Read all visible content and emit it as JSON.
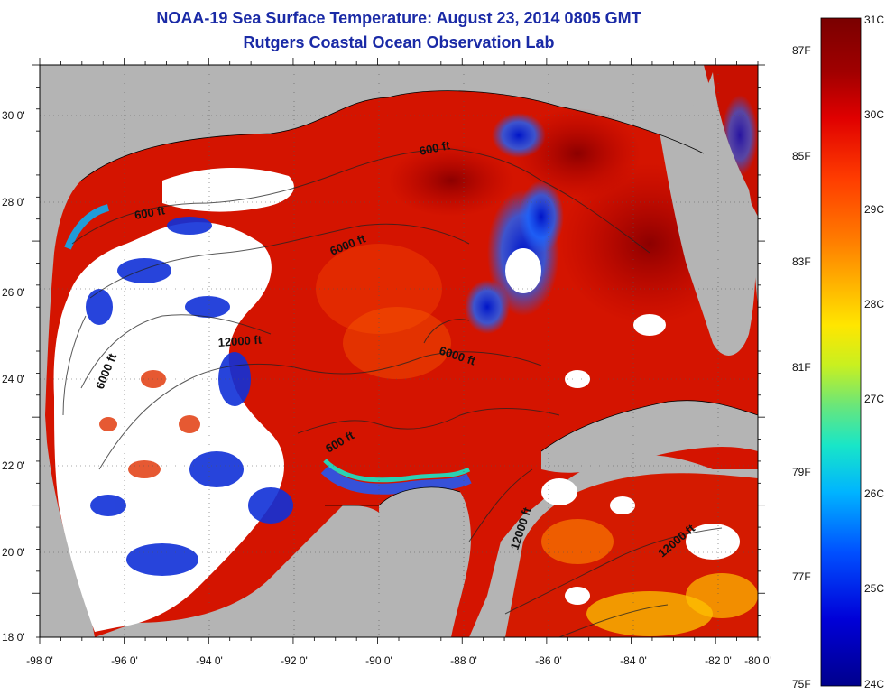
{
  "header": {
    "title": "NOAA-19 Sea Surface Temperature:  August 23, 2014 0805 GMT",
    "subtitle": "Rutgers Coastal Ocean Observation Lab"
  },
  "axes": {
    "x_ticks": [
      "-98 0'",
      "-96 0'",
      "-94 0'",
      "-92 0'",
      "-90 0'",
      "-88 0'",
      "-86 0'",
      "-84 0'",
      "-82 0'",
      "-80 0'"
    ],
    "y_ticks": [
      "30 0'",
      "28 0'",
      "26 0'",
      "24 0'",
      "22 0'",
      "20 0'",
      "18 0'"
    ]
  },
  "contour_labels": [
    {
      "text": "600 ft"
    },
    {
      "text": "600 ft"
    },
    {
      "text": "6000 ft"
    },
    {
      "text": "12000 ft"
    },
    {
      "text": "6000 ft"
    },
    {
      "text": "6000 ft"
    },
    {
      "text": "600 ft"
    },
    {
      "text": "12000 ft"
    },
    {
      "text": "12000 ft"
    }
  ],
  "colorbar": {
    "celsius_labels": [
      "31C",
      "30C",
      "29C",
      "28C",
      "27C",
      "26C",
      "25C",
      "24C"
    ],
    "fahrenheit_labels": [
      "87F",
      "85F",
      "83F",
      "81F",
      "79F",
      "77F",
      "75F"
    ],
    "colors": [
      "#7a0000",
      "#c00000",
      "#ff1a00",
      "#ff6a00",
      "#ffc000",
      "#e6f000",
      "#7ae66a",
      "#18e6c8",
      "#00b4ff",
      "#0050ff",
      "#0000d8",
      "#00008c"
    ]
  },
  "colors": {
    "land": "#b4b4b4",
    "cloud": "#ffffff",
    "title": "#1a2aa6"
  }
}
